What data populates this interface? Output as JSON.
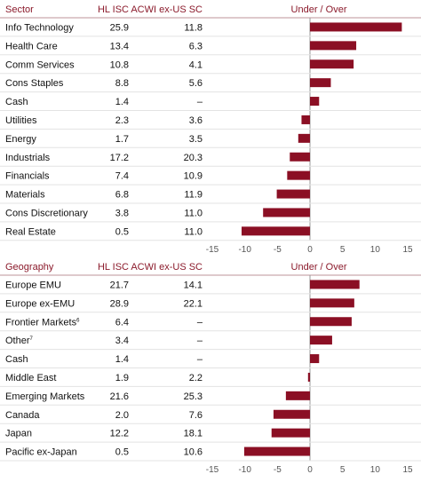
{
  "colors": {
    "accent": "#8b1a2b",
    "bar": "#8b0f24",
    "rule": "#c9a9ae",
    "row_divider": "#e3e3e3",
    "text": "#111111",
    "tick_text": "#555555",
    "zero_line": "#999999"
  },
  "chart_data": [
    {
      "type": "bar",
      "orientation": "horizontal",
      "headers": {
        "label": "Sector",
        "hl": "HL ISC",
        "acwi": "ACWI ex-US SC",
        "diff": "Under / Over"
      },
      "rows": [
        {
          "label": "Info Technology",
          "hl": "25.9",
          "acwi": "11.8",
          "diff": 14.1
        },
        {
          "label": "Health Care",
          "hl": "13.4",
          "acwi": "6.3",
          "diff": 7.1
        },
        {
          "label": "Comm Services",
          "hl": "10.8",
          "acwi": "4.1",
          "diff": 6.7
        },
        {
          "label": "Cons Staples",
          "hl": "8.8",
          "acwi": "5.6",
          "diff": 3.2
        },
        {
          "label": "Cash",
          "hl": "1.4",
          "acwi": "–",
          "diff": 1.4
        },
        {
          "label": "Utilities",
          "hl": "2.3",
          "acwi": "3.6",
          "diff": -1.3
        },
        {
          "label": "Energy",
          "hl": "1.7",
          "acwi": "3.5",
          "diff": -1.8
        },
        {
          "label": "Industrials",
          "hl": "17.2",
          "acwi": "20.3",
          "diff": -3.1
        },
        {
          "label": "Financials",
          "hl": "7.4",
          "acwi": "10.9",
          "diff": -3.5
        },
        {
          "label": "Materials",
          "hl": "6.8",
          "acwi": "11.9",
          "diff": -5.1
        },
        {
          "label": "Cons Discretionary",
          "hl": "3.8",
          "acwi": "11.0",
          "diff": -7.2
        },
        {
          "label": "Real Estate",
          "hl": "0.5",
          "acwi": "11.0",
          "diff": -10.5
        }
      ],
      "xlim": [
        -15,
        15
      ],
      "xticks": [
        -15,
        -10,
        -5,
        0,
        5,
        10,
        15
      ]
    },
    {
      "type": "bar",
      "orientation": "horizontal",
      "headers": {
        "label": "Geography",
        "hl": "HL ISC",
        "acwi": "ACWI ex-US SC",
        "diff": "Under / Over"
      },
      "rows": [
        {
          "label": "Europe EMU",
          "hl": "21.7",
          "acwi": "14.1",
          "diff": 7.6
        },
        {
          "label": "Europe ex-EMU",
          "hl": "28.9",
          "acwi": "22.1",
          "diff": 6.8
        },
        {
          "label": "Frontier Markets",
          "sup": "6",
          "hl": "6.4",
          "acwi": "–",
          "diff": 6.4
        },
        {
          "label": "Other",
          "sup": "7",
          "hl": "3.4",
          "acwi": "–",
          "diff": 3.4
        },
        {
          "label": "Cash",
          "hl": "1.4",
          "acwi": "–",
          "diff": 1.4
        },
        {
          "label": "Middle East",
          "hl": "1.9",
          "acwi": "2.2",
          "diff": -0.3
        },
        {
          "label": "Emerging Markets",
          "hl": "21.6",
          "acwi": "25.3",
          "diff": -3.7
        },
        {
          "label": "Canada",
          "hl": "2.0",
          "acwi": "7.6",
          "diff": -5.6
        },
        {
          "label": "Japan",
          "hl": "12.2",
          "acwi": "18.1",
          "diff": -5.9
        },
        {
          "label": "Pacific ex-Japan",
          "hl": "0.5",
          "acwi": "10.6",
          "diff": -10.1
        }
      ],
      "xlim": [
        -15,
        15
      ],
      "xticks": [
        -15,
        -10,
        -5,
        0,
        5,
        10,
        15
      ]
    }
  ]
}
